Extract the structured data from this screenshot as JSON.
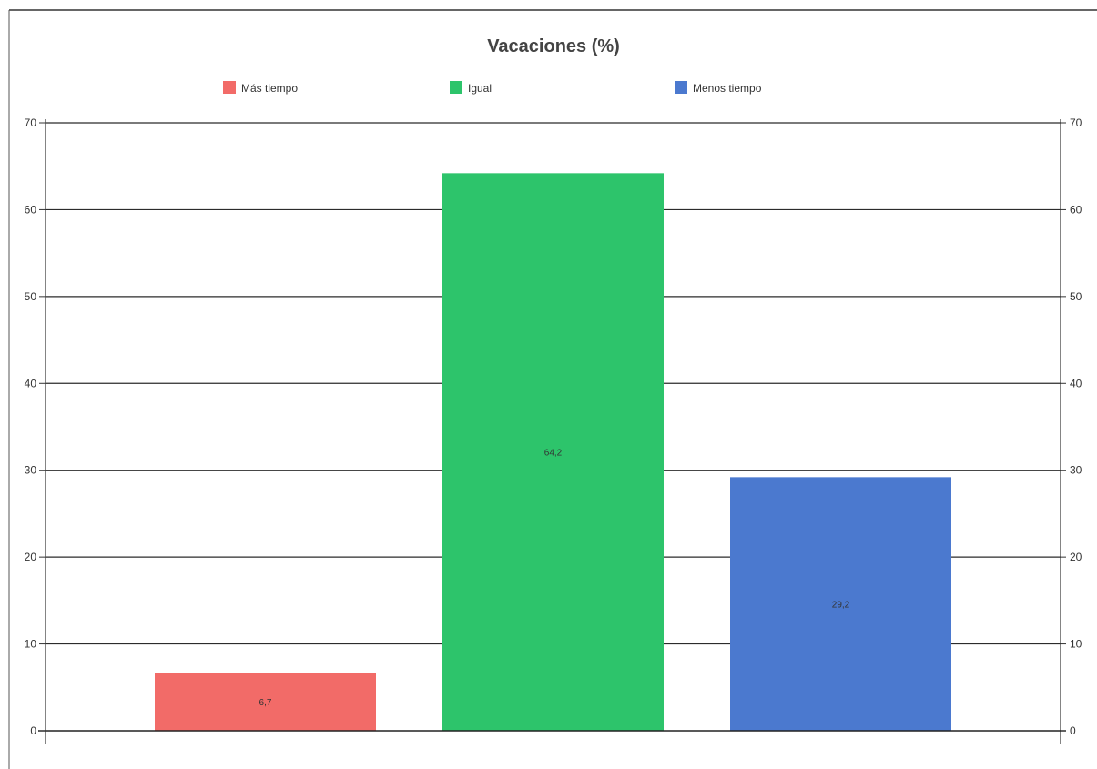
{
  "chart_data": {
    "type": "bar",
    "title": "Vacaciones (%)",
    "categories": [
      "Más tiempo",
      "Igual",
      "Menos tiempo"
    ],
    "values": [
      6.7,
      64.2,
      29.2
    ],
    "data_labels": [
      "6,7",
      "64,2",
      "29,2"
    ],
    "colors": [
      "#f26b68",
      "#2dc46b",
      "#4b79cf"
    ],
    "legend": {
      "position": "top",
      "entries": [
        "Más tiempo",
        "Igual",
        "Menos tiempo"
      ]
    },
    "ylim": [
      0,
      70
    ],
    "yticks": [
      0,
      10,
      20,
      30,
      40,
      50,
      60,
      70
    ],
    "secondary_axis": true,
    "grid": true,
    "xlabel": "",
    "ylabel": ""
  }
}
